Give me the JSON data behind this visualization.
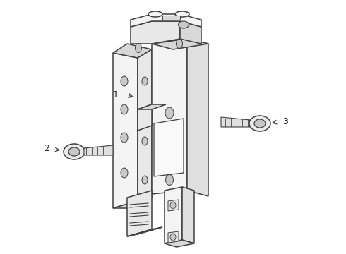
{
  "background_color": "#ffffff",
  "line_color": "#404040",
  "line_width": 1.1,
  "label_1": "1",
  "label_2": "2",
  "label_3": "3",
  "face_light": "#f4f4f4",
  "face_mid": "#e8e8e8",
  "face_dark": "#d8d8d8",
  "face_darker": "#c8c8c8",
  "face_right": "#e0e0e0"
}
